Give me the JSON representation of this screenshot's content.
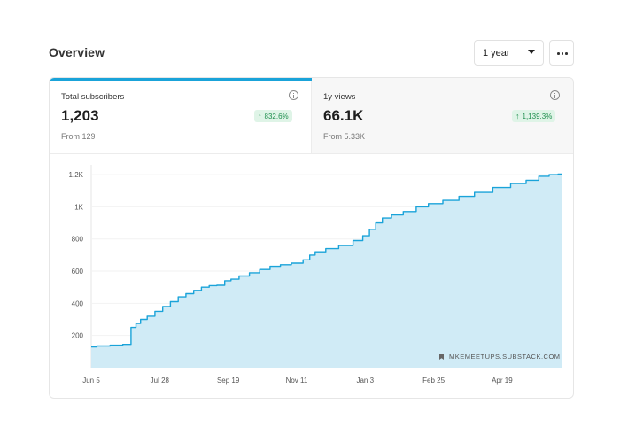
{
  "header": {
    "title": "Overview",
    "range_label": "1 year",
    "more_icon": "ellipsis-icon"
  },
  "stats": {
    "subscribers": {
      "label": "Total subscribers",
      "value": "1,203",
      "change": "832.6%",
      "from": "From 129",
      "active": true
    },
    "views": {
      "label": "1y views",
      "value": "66.1K",
      "change": "1,139.3%",
      "from": "From 5.33K",
      "active": false
    }
  },
  "colors": {
    "accent": "#1aa3d9",
    "area_fill": "#cdeaf6",
    "badge_bg": "#dff4e7",
    "badge_text": "#1f8f4e"
  },
  "chart_data": {
    "type": "area",
    "watermark": "MKEMEETUPS.SUBSTACK.COM",
    "x_tick_labels": [
      "Jun 5",
      "Jul 28",
      "Sep 19",
      "Nov 11",
      "Jan 3",
      "Feb 25",
      "Apr 19"
    ],
    "y_tick_labels": [
      "200",
      "400",
      "600",
      "800",
      "1K",
      "1.2K"
    ],
    "y_ticks": [
      200,
      400,
      600,
      800,
      1000,
      1200
    ],
    "ylim": [
      0,
      1250
    ],
    "x_range_days": [
      0,
      364
    ],
    "x_tick_days": [
      0,
      53,
      106,
      159,
      212,
      265,
      318
    ],
    "series": [
      {
        "x_days": [
          0,
          8,
          20,
          28,
          33,
          36,
          40,
          46,
          52,
          58,
          64,
          70,
          76,
          82,
          88,
          94,
          100,
          106,
          110,
          118,
          126,
          134,
          142,
          150,
          159,
          168,
          170,
          176,
          186,
          196,
          208,
          212,
          218,
          222,
          228,
          236,
          246,
          256,
          265,
          278,
          290,
          302,
          318,
          330,
          342,
          350,
          358,
          364
        ],
        "y": [
          129,
          135,
          140,
          145,
          250,
          275,
          300,
          320,
          350,
          380,
          410,
          440,
          460,
          480,
          500,
          510,
          512,
          540,
          550,
          570,
          590,
          610,
          630,
          640,
          650,
          670,
          700,
          720,
          740,
          760,
          790,
          820,
          860,
          900,
          930,
          950,
          970,
          1000,
          1020,
          1040,
          1065,
          1090,
          1120,
          1145,
          1165,
          1190,
          1200,
          1203
        ]
      }
    ],
    "grid": "horizontal",
    "legend": "none"
  }
}
